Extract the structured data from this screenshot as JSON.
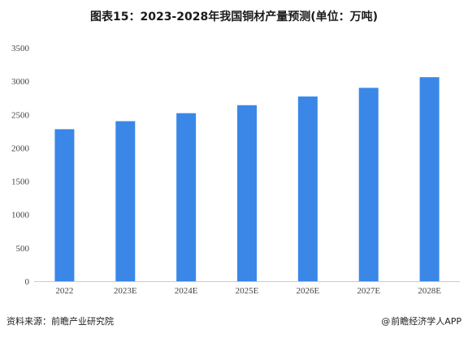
{
  "chart_data": {
    "type": "bar",
    "title": "图表15：2023-2028年我国铜材产量预测(单位：万吨)",
    "categories": [
      "2022",
      "2023E",
      "2024E",
      "2025E",
      "2026E",
      "2027E",
      "2028E"
    ],
    "series": [
      {
        "values": [
          2280,
          2400,
          2520,
          2640,
          2770,
          2900,
          3060
        ]
      }
    ],
    "ylim": [
      0,
      3500
    ],
    "yticks": [
      0,
      500,
      1000,
      1500,
      2000,
      2500,
      3000,
      3500
    ],
    "grid": false,
    "bar_color": "#3a87e8",
    "axis_color": "#cccccc"
  },
  "footer": {
    "source": "资料来源：前瞻产业研究院",
    "brand_at": "@",
    "brand": "前瞻经济学人APP"
  }
}
